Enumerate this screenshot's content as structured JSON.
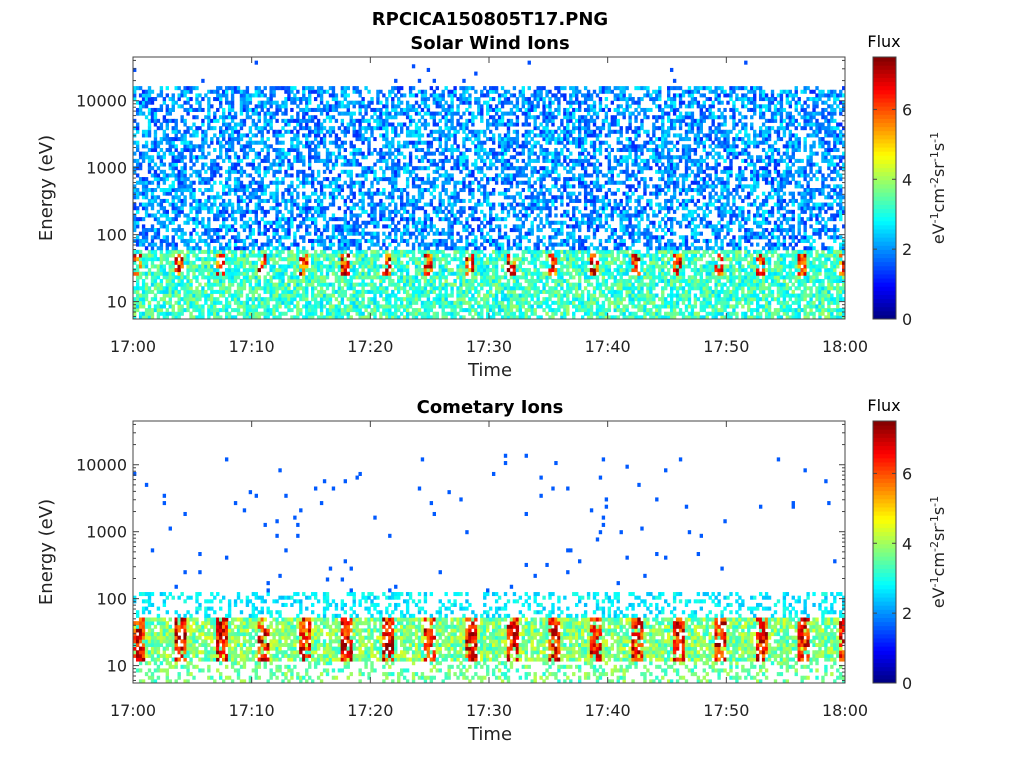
{
  "figure_title": "RPCICA150805T17.PNG",
  "chart_data": [
    {
      "type": "heatmap",
      "title": "Solar Wind Ions",
      "xlabel": "Time",
      "ylabel": "Energy (eV)",
      "x_range": [
        "17:00",
        "18:00"
      ],
      "x_ticks": [
        "17:00",
        "17:10",
        "17:20",
        "17:30",
        "17:40",
        "17:50",
        "18:00"
      ],
      "y_scale": "log",
      "ylim": [
        5.5,
        45000
      ],
      "y_ticks": [
        "10",
        "100",
        "1000",
        "10000"
      ],
      "colorbar": {
        "title": "Flux",
        "label": "eV-1cm-2sr-1s-1",
        "range": [
          0,
          7.5
        ],
        "ticks": [
          "0",
          "2",
          "4",
          "6"
        ]
      },
      "description_bands": {
        "low_energy_flux_eV": [
          6,
          60
        ],
        "high_energy_flux_eV": [
          60,
          15000
        ]
      }
    },
    {
      "type": "heatmap",
      "title": "Cometary Ions",
      "xlabel": "Time",
      "ylabel": "Energy (eV)",
      "x_range": [
        "17:00",
        "18:00"
      ],
      "x_ticks": [
        "17:00",
        "17:10",
        "17:20",
        "17:30",
        "17:40",
        "17:50",
        "18:00"
      ],
      "y_scale": "log",
      "ylim": [
        5.5,
        45000
      ],
      "y_ticks": [
        "10",
        "100",
        "1000",
        "10000"
      ],
      "colorbar": {
        "title": "Flux",
        "label": "eV-1cm-2sr-1s-1",
        "range": [
          0,
          7.5
        ],
        "ticks": [
          "0",
          "2",
          "4",
          "6"
        ]
      }
    }
  ],
  "colorbar_unit": {
    "base1": "eV",
    "exp1": "-1",
    "base2": "cm",
    "exp2": "-2",
    "base3": "sr",
    "exp3": "-1",
    "base4": "s",
    "exp4": "-1"
  }
}
